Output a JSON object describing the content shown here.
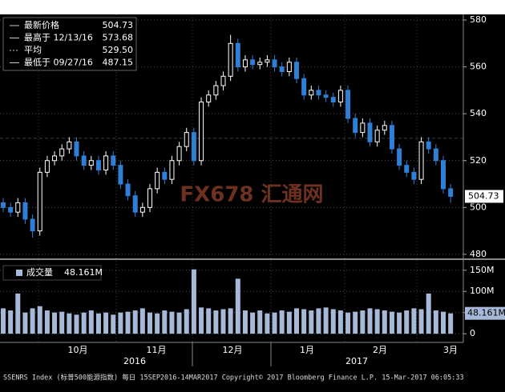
{
  "chart_data": [
    {
      "type": "candlestick",
      "open": [
        502,
        500,
        498,
        502,
        495,
        490,
        515,
        520,
        522,
        525,
        528,
        522,
        518,
        520,
        516,
        522,
        518,
        510,
        505,
        498,
        500,
        508,
        515,
        512,
        520,
        526,
        532,
        520,
        545,
        548,
        552,
        556,
        570,
        560,
        563,
        561,
        562,
        563,
        560,
        558,
        562,
        555,
        548,
        550,
        548,
        547,
        545,
        550,
        538,
        532,
        536,
        528,
        533,
        535,
        525,
        518,
        515,
        512,
        528,
        525,
        520,
        508
      ],
      "high": [
        504,
        502,
        504,
        504,
        497,
        517,
        522,
        524,
        527,
        530,
        530,
        524,
        522,
        522,
        524,
        524,
        520,
        512,
        507,
        502,
        510,
        517,
        517,
        522,
        528,
        534,
        534,
        547,
        550,
        554,
        558,
        573.68,
        572,
        565,
        565,
        564,
        565,
        565,
        562,
        564,
        564,
        557,
        552,
        552,
        550,
        549,
        552,
        552,
        540,
        538,
        538,
        535,
        537,
        537,
        527,
        520,
        517,
        530,
        530,
        527,
        522,
        510
      ],
      "low": [
        498,
        496,
        496,
        493,
        487.15,
        488,
        513,
        518,
        520,
        523,
        520,
        516,
        516,
        514,
        514,
        516,
        508,
        503,
        496,
        496,
        498,
        506,
        510,
        510,
        518,
        524,
        518,
        518,
        543,
        546,
        550,
        554,
        558,
        558,
        559,
        559,
        560,
        558,
        556,
        556,
        553,
        546,
        546,
        546,
        545,
        543,
        543,
        536,
        530,
        530,
        526,
        526,
        531,
        523,
        516,
        513,
        510,
        510,
        523,
        518,
        506,
        502
      ],
      "close": [
        500,
        498,
        502,
        495,
        490,
        515,
        520,
        522,
        525,
        528,
        522,
        518,
        520,
        516,
        522,
        518,
        510,
        505,
        498,
        500,
        508,
        515,
        512,
        520,
        526,
        532,
        520,
        545,
        548,
        552,
        556,
        570,
        560,
        563,
        561,
        562,
        563,
        560,
        558,
        562,
        555,
        548,
        550,
        548,
        547,
        545,
        550,
        538,
        532,
        536,
        528,
        533,
        535,
        525,
        518,
        515,
        512,
        528,
        525,
        520,
        508,
        504.73
      ],
      "up_color": "#ffffff",
      "down_color": "#2f7fd6",
      "ylim": [
        478.6,
        582.4
      ],
      "yticks": [
        480,
        500,
        520,
        540,
        560,
        580
      ],
      "grid": true,
      "average": 529.5,
      "legend": {
        "items": [
          {
            "label": "最新价格",
            "value": "504.73"
          },
          {
            "label": "最高于 12/13/16",
            "value": "573.68"
          },
          {
            "label": "平均",
            "value": "529.50"
          },
          {
            "label": "最低于 09/27/16",
            "value": "487.15"
          }
        ]
      }
    },
    {
      "type": "bar",
      "values": [
        60,
        55,
        95,
        50,
        60,
        65,
        55,
        50,
        52,
        48,
        45,
        50,
        55,
        48,
        50,
        45,
        50,
        52,
        55,
        60,
        50,
        48,
        55,
        52,
        50,
        58,
        152,
        62,
        60,
        55,
        58,
        60,
        130,
        55,
        50,
        55,
        48,
        50,
        55,
        52,
        60,
        58,
        55,
        60,
        62,
        58,
        55,
        50,
        52,
        55,
        60,
        58,
        55,
        52,
        50,
        55,
        60,
        58,
        95,
        55,
        52,
        48.161
      ],
      "color": "#a7b9d8",
      "ylim": [
        -16.7,
        168.5
      ],
      "yticks": [
        0,
        {
          "value": 50,
          "label": "50M"
        },
        {
          "value": 100,
          "label": "100M"
        },
        {
          "value": 150,
          "label": "150M"
        }
      ],
      "legend": {
        "label": "成交量",
        "value": "48.161M"
      }
    }
  ],
  "x_axis": {
    "months": [
      "10月",
      "11月",
      "12月",
      "1月",
      "2月",
      "3月"
    ],
    "years": [
      "2016",
      "2017"
    ]
  },
  "watermark": "FX678 汇通网",
  "footer": "SSENRS Index (标普500能源指数) 每日 15SEP2016-14MAR2017  Copyright© 2017 Bloomberg Finance L.P.  15-Mar-2017 06:05:33"
}
